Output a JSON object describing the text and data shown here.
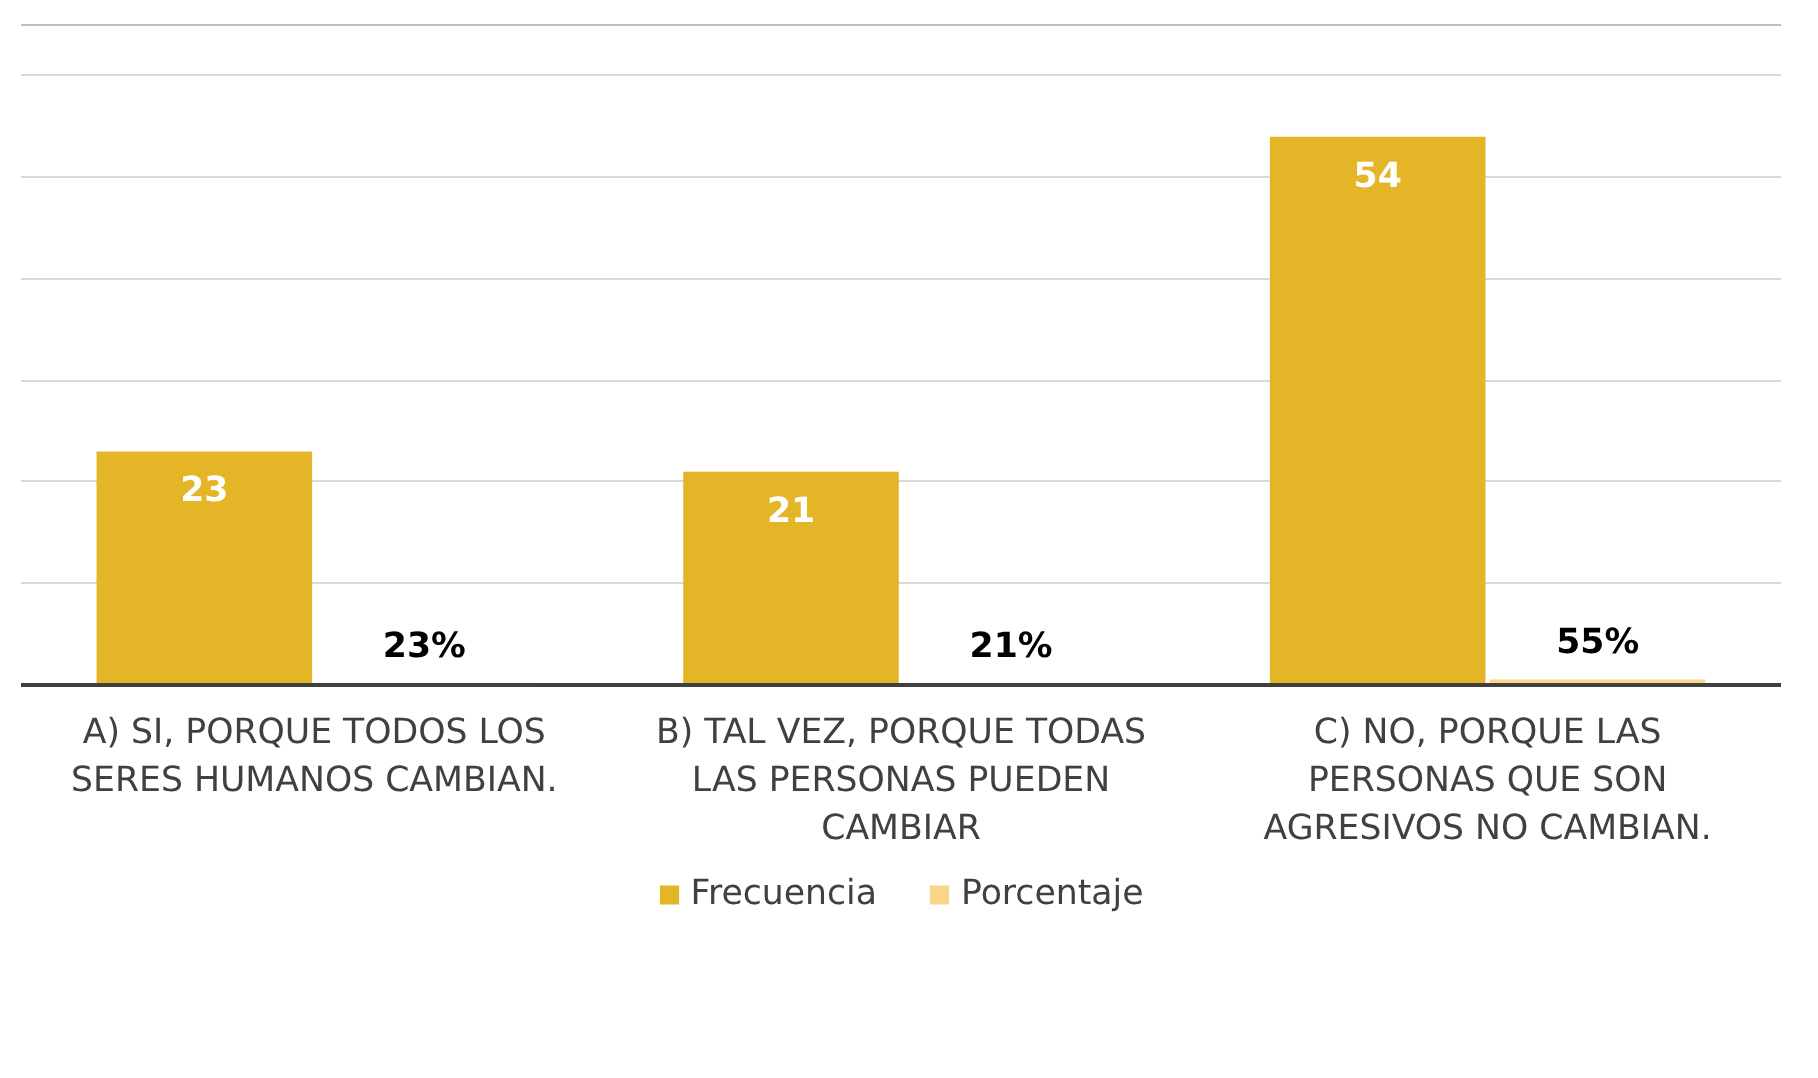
{
  "chart_data": {
    "type": "bar",
    "categories": [
      "A) SI, PORQUE TODOS LOS SERES HUMANOS CAMBIAN.",
      "B) TAL VEZ, PORQUE TODAS LAS PERSONAS PUEDEN CAMBIAR",
      "C) NO, PORQUE LAS PERSONAS QUE SON AGRESIVOS NO CAMBIAN."
    ],
    "series": [
      {
        "name": "Frecuencia",
        "color": "#e3b527",
        "values": [
          23,
          21,
          54
        ],
        "value_labels": [
          "23",
          "21",
          "54"
        ]
      },
      {
        "name": "Porcentaje",
        "color": "#fbd68a",
        "values": [
          0.23,
          0.21,
          0.55
        ],
        "value_labels": [
          "23%",
          "21%",
          "55%"
        ]
      }
    ],
    "ylim": [
      0,
      65
    ],
    "yticks": [
      {
        "value": 0,
        "label": null
      },
      {
        "value": 10,
        "label": null
      },
      {
        "value": 20,
        "label": null
      },
      {
        "value": 30,
        "label": null
      },
      {
        "value": 40,
        "label": null
      },
      {
        "value": 50,
        "label": null
      },
      {
        "value": 60,
        "label": null
      }
    ],
    "grid": "y",
    "legend": "bottom",
    "tick_labels": "x"
  }
}
